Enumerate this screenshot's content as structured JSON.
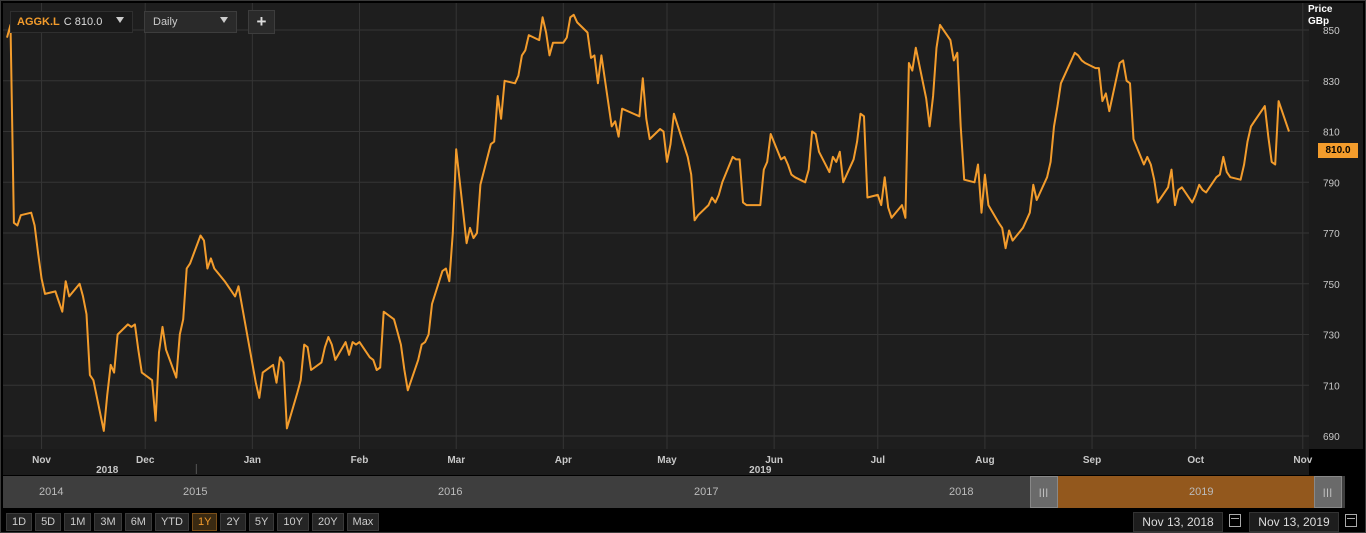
{
  "toolbar": {
    "ticker": "AGGK.L",
    "close_text": "C 810.0",
    "interval": "Daily",
    "add_label": "+"
  },
  "price_axis": {
    "unit_line1": "Price",
    "unit_line2": "GBp"
  },
  "last_price_badge": "810.0",
  "colors": {
    "line": "#f39c2c",
    "background": "#1e1e1e",
    "grid": "#353535",
    "accent": "#f39c2c"
  },
  "chart_data": {
    "type": "line",
    "title": "",
    "xlabel": "",
    "ylabel": "Price GBp",
    "ylim": [
      683,
      860
    ],
    "yticks": [
      690,
      710,
      730,
      750,
      770,
      790,
      810,
      830,
      850
    ],
    "grid": true,
    "months": [
      {
        "label": "Nov",
        "date": "2018-11-01"
      },
      {
        "label": "Dec",
        "date": "2018-12-01"
      },
      {
        "label": "Jan",
        "date": "2019-01-01"
      },
      {
        "label": "Feb",
        "date": "2019-02-01"
      },
      {
        "label": "Mar",
        "date": "2019-03-01"
      },
      {
        "label": "Apr",
        "date": "2019-04-01"
      },
      {
        "label": "May",
        "date": "2019-05-01"
      },
      {
        "label": "Jun",
        "date": "2019-06-01"
      },
      {
        "label": "Jul",
        "date": "2019-07-01"
      },
      {
        "label": "Aug",
        "date": "2019-08-01"
      },
      {
        "label": "Sep",
        "date": "2019-09-01"
      },
      {
        "label": "Oct",
        "date": "2019-10-01"
      },
      {
        "label": "Nov",
        "date": "2019-11-01"
      }
    ],
    "years": [
      {
        "label": "2018",
        "date": "2018-11-20"
      },
      {
        "label": "2019",
        "date": "2019-05-28"
      }
    ],
    "year_dividers": [
      "2019-01-01"
    ],
    "series": [
      {
        "values": [
          [
            "2018-10-22",
            847
          ],
          [
            "2018-10-23",
            852
          ],
          [
            "2018-10-24",
            774
          ],
          [
            "2018-10-25",
            773
          ],
          [
            "2018-10-26",
            777
          ],
          [
            "2018-10-29",
            778
          ],
          [
            "2018-10-30",
            773
          ],
          [
            "2018-10-31",
            762
          ],
          [
            "2018-11-01",
            752
          ],
          [
            "2018-11-02",
            746
          ],
          [
            "2018-11-05",
            747
          ],
          [
            "2018-11-06",
            743
          ],
          [
            "2018-11-07",
            739
          ],
          [
            "2018-11-08",
            751
          ],
          [
            "2018-11-09",
            745
          ],
          [
            "2018-11-12",
            750
          ],
          [
            "2018-11-13",
            745
          ],
          [
            "2018-11-14",
            738
          ],
          [
            "2018-11-15",
            714
          ],
          [
            "2018-11-16",
            712
          ],
          [
            "2018-11-19",
            692
          ],
          [
            "2018-11-20",
            706
          ],
          [
            "2018-11-21",
            718
          ],
          [
            "2018-11-22",
            715
          ],
          [
            "2018-11-23",
            730
          ],
          [
            "2018-11-26",
            734
          ],
          [
            "2018-11-27",
            733
          ],
          [
            "2018-11-28",
            734
          ],
          [
            "2018-11-29",
            724
          ],
          [
            "2018-11-30",
            715
          ],
          [
            "2018-12-03",
            712
          ],
          [
            "2018-12-04",
            696
          ],
          [
            "2018-12-05",
            723
          ],
          [
            "2018-12-06",
            733
          ],
          [
            "2018-12-07",
            724
          ],
          [
            "2018-12-10",
            713
          ],
          [
            "2018-12-11",
            730
          ],
          [
            "2018-12-12",
            736
          ],
          [
            "2018-12-13",
            756
          ],
          [
            "2018-12-14",
            758
          ],
          [
            "2018-12-17",
            769
          ],
          [
            "2018-12-18",
            767
          ],
          [
            "2018-12-19",
            756
          ],
          [
            "2018-12-20",
            760
          ],
          [
            "2018-12-21",
            756
          ],
          [
            "2018-12-24",
            751
          ],
          [
            "2018-12-27",
            745
          ],
          [
            "2018-12-28",
            749
          ],
          [
            "2019-01-02",
            711
          ],
          [
            "2019-01-03",
            705
          ],
          [
            "2019-01-04",
            715
          ],
          [
            "2019-01-07",
            718
          ],
          [
            "2019-01-08",
            711
          ],
          [
            "2019-01-09",
            721
          ],
          [
            "2019-01-10",
            719
          ],
          [
            "2019-01-11",
            693
          ],
          [
            "2019-01-14",
            707
          ],
          [
            "2019-01-15",
            712
          ],
          [
            "2019-01-16",
            726
          ],
          [
            "2019-01-17",
            725
          ],
          [
            "2019-01-18",
            716
          ],
          [
            "2019-01-21",
            719
          ],
          [
            "2019-01-22",
            725
          ],
          [
            "2019-01-23",
            729
          ],
          [
            "2019-01-24",
            726
          ],
          [
            "2019-01-25",
            720
          ],
          [
            "2019-01-28",
            727
          ],
          [
            "2019-01-29",
            722
          ],
          [
            "2019-01-30",
            727
          ],
          [
            "2019-01-31",
            726
          ],
          [
            "2019-02-01",
            727
          ],
          [
            "2019-02-04",
            721
          ],
          [
            "2019-02-05",
            720
          ],
          [
            "2019-02-06",
            716
          ],
          [
            "2019-02-07",
            717
          ],
          [
            "2019-02-08",
            739
          ],
          [
            "2019-02-11",
            736
          ],
          [
            "2019-02-12",
            731
          ],
          [
            "2019-02-13",
            726
          ],
          [
            "2019-02-14",
            716
          ],
          [
            "2019-02-15",
            708
          ],
          [
            "2019-02-18",
            720
          ],
          [
            "2019-02-19",
            726
          ],
          [
            "2019-02-20",
            727
          ],
          [
            "2019-02-21",
            730
          ],
          [
            "2019-02-22",
            742
          ],
          [
            "2019-02-25",
            755
          ],
          [
            "2019-02-26",
            756
          ],
          [
            "2019-02-27",
            751
          ],
          [
            "2019-02-28",
            770
          ],
          [
            "2019-03-01",
            803
          ],
          [
            "2019-03-04",
            766
          ],
          [
            "2019-03-05",
            772
          ],
          [
            "2019-03-06",
            768
          ],
          [
            "2019-03-07",
            770
          ],
          [
            "2019-03-08",
            789
          ],
          [
            "2019-03-11",
            805
          ],
          [
            "2019-03-12",
            806
          ],
          [
            "2019-03-13",
            824
          ],
          [
            "2019-03-14",
            815
          ],
          [
            "2019-03-15",
            830
          ],
          [
            "2019-03-18",
            829
          ],
          [
            "2019-03-19",
            832
          ],
          [
            "2019-03-20",
            840
          ],
          [
            "2019-03-21",
            842
          ],
          [
            "2019-03-22",
            848
          ],
          [
            "2019-03-25",
            846
          ],
          [
            "2019-03-26",
            855
          ],
          [
            "2019-03-27",
            849
          ],
          [
            "2019-03-28",
            840
          ],
          [
            "2019-03-29",
            845
          ],
          [
            "2019-04-01",
            845
          ],
          [
            "2019-04-02",
            847
          ],
          [
            "2019-04-03",
            855
          ],
          [
            "2019-04-04",
            856
          ],
          [
            "2019-04-05",
            853
          ],
          [
            "2019-04-08",
            849
          ],
          [
            "2019-04-09",
            839
          ],
          [
            "2019-04-10",
            840
          ],
          [
            "2019-04-11",
            829
          ],
          [
            "2019-04-12",
            840
          ],
          [
            "2019-04-15",
            812
          ],
          [
            "2019-04-16",
            814
          ],
          [
            "2019-04-17",
            808
          ],
          [
            "2019-04-18",
            819
          ],
          [
            "2019-04-23",
            816
          ],
          [
            "2019-04-24",
            831
          ],
          [
            "2019-04-25",
            815
          ],
          [
            "2019-04-26",
            807
          ],
          [
            "2019-04-29",
            811
          ],
          [
            "2019-04-30",
            810
          ],
          [
            "2019-05-01",
            798
          ],
          [
            "2019-05-02",
            805
          ],
          [
            "2019-05-03",
            817
          ],
          [
            "2019-05-07",
            800
          ],
          [
            "2019-05-08",
            793
          ],
          [
            "2019-05-09",
            775
          ],
          [
            "2019-05-10",
            777
          ],
          [
            "2019-05-13",
            781
          ],
          [
            "2019-05-14",
            784
          ],
          [
            "2019-05-15",
            782
          ],
          [
            "2019-05-16",
            785
          ],
          [
            "2019-05-17",
            790
          ],
          [
            "2019-05-20",
            800
          ],
          [
            "2019-05-21",
            799
          ],
          [
            "2019-05-22",
            799
          ],
          [
            "2019-05-23",
            782
          ],
          [
            "2019-05-24",
            781
          ],
          [
            "2019-05-28",
            781
          ],
          [
            "2019-05-29",
            795
          ],
          [
            "2019-05-30",
            798
          ],
          [
            "2019-05-31",
            809
          ],
          [
            "2019-06-03",
            799
          ],
          [
            "2019-06-04",
            800
          ],
          [
            "2019-06-05",
            797
          ],
          [
            "2019-06-06",
            793
          ],
          [
            "2019-06-07",
            792
          ],
          [
            "2019-06-10",
            790
          ],
          [
            "2019-06-11",
            795
          ],
          [
            "2019-06-12",
            810
          ],
          [
            "2019-06-13",
            809
          ],
          [
            "2019-06-14",
            802
          ],
          [
            "2019-06-17",
            794
          ],
          [
            "2019-06-18",
            800
          ],
          [
            "2019-06-19",
            798
          ],
          [
            "2019-06-20",
            802
          ],
          [
            "2019-06-21",
            790
          ],
          [
            "2019-06-24",
            799
          ],
          [
            "2019-06-25",
            806
          ],
          [
            "2019-06-26",
            817
          ],
          [
            "2019-06-27",
            816
          ],
          [
            "2019-06-28",
            784
          ],
          [
            "2019-07-01",
            785
          ],
          [
            "2019-07-02",
            781
          ],
          [
            "2019-07-03",
            792
          ],
          [
            "2019-07-04",
            780
          ],
          [
            "2019-07-05",
            776
          ],
          [
            "2019-07-08",
            781
          ],
          [
            "2019-07-09",
            776
          ],
          [
            "2019-07-10",
            837
          ],
          [
            "2019-07-11",
            834
          ],
          [
            "2019-07-12",
            843
          ],
          [
            "2019-07-15",
            823
          ],
          [
            "2019-07-16",
            812
          ],
          [
            "2019-07-17",
            824
          ],
          [
            "2019-07-18",
            843
          ],
          [
            "2019-07-19",
            852
          ],
          [
            "2019-07-22",
            846
          ],
          [
            "2019-07-23",
            838
          ],
          [
            "2019-07-24",
            841
          ],
          [
            "2019-07-25",
            812
          ],
          [
            "2019-07-26",
            791
          ],
          [
            "2019-07-29",
            790
          ],
          [
            "2019-07-30",
            797
          ],
          [
            "2019-07-31",
            778
          ],
          [
            "2019-08-01",
            793
          ],
          [
            "2019-08-02",
            781
          ],
          [
            "2019-08-05",
            774
          ],
          [
            "2019-08-06",
            772
          ],
          [
            "2019-08-07",
            764
          ],
          [
            "2019-08-08",
            771
          ],
          [
            "2019-08-09",
            767
          ],
          [
            "2019-08-12",
            772
          ],
          [
            "2019-08-13",
            775
          ],
          [
            "2019-08-14",
            778
          ],
          [
            "2019-08-15",
            789
          ],
          [
            "2019-08-16",
            783
          ],
          [
            "2019-08-19",
            792
          ],
          [
            "2019-08-20",
            798
          ],
          [
            "2019-08-21",
            812
          ],
          [
            "2019-08-22",
            820
          ],
          [
            "2019-08-23",
            829
          ],
          [
            "2019-08-27",
            841
          ],
          [
            "2019-08-28",
            840
          ],
          [
            "2019-08-29",
            838
          ],
          [
            "2019-08-30",
            837
          ],
          [
            "2019-09-02",
            835
          ],
          [
            "2019-09-03",
            835
          ],
          [
            "2019-09-04",
            822
          ],
          [
            "2019-09-05",
            825
          ],
          [
            "2019-09-06",
            818
          ],
          [
            "2019-09-09",
            837
          ],
          [
            "2019-09-10",
            838
          ],
          [
            "2019-09-11",
            830
          ],
          [
            "2019-09-12",
            829
          ],
          [
            "2019-09-13",
            807
          ],
          [
            "2019-09-16",
            797
          ],
          [
            "2019-09-17",
            800
          ],
          [
            "2019-09-18",
            797
          ],
          [
            "2019-09-19",
            791
          ],
          [
            "2019-09-20",
            782
          ],
          [
            "2019-09-23",
            788
          ],
          [
            "2019-09-24",
            795
          ],
          [
            "2019-09-25",
            781
          ],
          [
            "2019-09-26",
            787
          ],
          [
            "2019-09-27",
            788
          ],
          [
            "2019-09-30",
            782
          ],
          [
            "2019-10-01",
            785
          ],
          [
            "2019-10-02",
            789
          ],
          [
            "2019-10-03",
            787
          ],
          [
            "2019-10-04",
            786
          ],
          [
            "2019-10-07",
            792
          ],
          [
            "2019-10-08",
            793
          ],
          [
            "2019-10-09",
            800
          ],
          [
            "2019-10-10",
            794
          ],
          [
            "2019-10-11",
            792
          ],
          [
            "2019-10-14",
            791
          ],
          [
            "2019-10-15",
            797
          ],
          [
            "2019-10-16",
            806
          ],
          [
            "2019-10-17",
            812
          ],
          [
            "2019-10-18",
            814
          ],
          [
            "2019-10-21",
            820
          ],
          [
            "2019-10-22",
            808
          ],
          [
            "2019-10-23",
            798
          ],
          [
            "2019-10-24",
            797
          ],
          [
            "2019-10-25",
            822
          ],
          [
            "2019-10-28",
            810
          ]
        ]
      }
    ]
  },
  "navigator": {
    "years": [
      "2014",
      "2015",
      "2016",
      "2017",
      "2018",
      "2019"
    ]
  },
  "ranges": {
    "buttons": [
      "1D",
      "5D",
      "1M",
      "3M",
      "6M",
      "YTD",
      "1Y",
      "2Y",
      "5Y",
      "10Y",
      "20Y",
      "Max"
    ],
    "active": "1Y",
    "start_date": "Nov 13, 2018",
    "end_date": "Nov 13, 2019"
  }
}
